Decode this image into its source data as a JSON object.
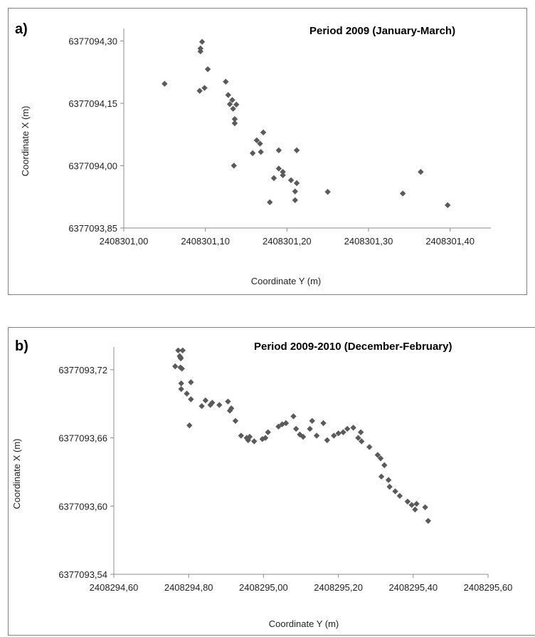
{
  "chart_data": [
    {
      "panel_label": "a)",
      "type": "scatter",
      "title": "Period  2009 (January-March)",
      "xlabel": "Coordinate Y (m)",
      "ylabel": "Coordinate X (m)",
      "xlim": [
        2408301.0,
        2408301.45
      ],
      "ylim": [
        6377093.85,
        6377094.33
      ],
      "x_ticks": [
        2408301.0,
        2408301.1,
        2408301.2,
        2408301.3,
        2408301.4
      ],
      "x_tick_labels": [
        "2408301,00",
        "2408301,10",
        "2408301,20",
        "2408301,30",
        "2408301,40"
      ],
      "y_ticks": [
        6377093.85,
        6377094.0,
        6377094.15,
        6377094.3
      ],
      "y_tick_labels": [
        "6377093,85",
        "6377094,00",
        "6377094,15",
        "6377094,30"
      ],
      "grid": false,
      "legend": "none",
      "marker": "diamond",
      "marker_color": "#5a5a5a",
      "points": [
        {
          "x": 2408301.05,
          "y": 6377094.197
        },
        {
          "x": 2408301.096,
          "y": 6377094.298
        },
        {
          "x": 2408301.094,
          "y": 6377094.282
        },
        {
          "x": 2408301.094,
          "y": 6377094.275
        },
        {
          "x": 2408301.103,
          "y": 6377094.232
        },
        {
          "x": 2408301.093,
          "y": 6377094.18
        },
        {
          "x": 2408301.099,
          "y": 6377094.187
        },
        {
          "x": 2408301.125,
          "y": 6377094.202
        },
        {
          "x": 2408301.128,
          "y": 6377094.17
        },
        {
          "x": 2408301.13,
          "y": 6377094.148
        },
        {
          "x": 2408301.133,
          "y": 6377094.158
        },
        {
          "x": 2408301.134,
          "y": 6377094.137
        },
        {
          "x": 2408301.138,
          "y": 6377094.147
        },
        {
          "x": 2408301.136,
          "y": 6377094.112
        },
        {
          "x": 2408301.136,
          "y": 6377094.102
        },
        {
          "x": 2408301.171,
          "y": 6377094.08
        },
        {
          "x": 2408301.163,
          "y": 6377094.061
        },
        {
          "x": 2408301.167,
          "y": 6377094.053
        },
        {
          "x": 2408301.168,
          "y": 6377094.033
        },
        {
          "x": 2408301.158,
          "y": 6377094.03
        },
        {
          "x": 2408301.135,
          "y": 6377094.0
        },
        {
          "x": 2408301.19,
          "y": 6377094.037
        },
        {
          "x": 2408301.212,
          "y": 6377094.037
        },
        {
          "x": 2408301.19,
          "y": 6377093.993
        },
        {
          "x": 2408301.195,
          "y": 6377093.985
        },
        {
          "x": 2408301.195,
          "y": 6377093.977
        },
        {
          "x": 2408301.184,
          "y": 6377093.97
        },
        {
          "x": 2408301.205,
          "y": 6377093.965
        },
        {
          "x": 2408301.212,
          "y": 6377093.958
        },
        {
          "x": 2408301.21,
          "y": 6377093.938
        },
        {
          "x": 2408301.179,
          "y": 6377093.912
        },
        {
          "x": 2408301.21,
          "y": 6377093.917
        },
        {
          "x": 2408301.25,
          "y": 6377093.937
        },
        {
          "x": 2408301.342,
          "y": 6377093.933
        },
        {
          "x": 2408301.364,
          "y": 6377093.985
        },
        {
          "x": 2408301.397,
          "y": 6377093.905
        }
      ]
    },
    {
      "panel_label": "b)",
      "type": "scatter",
      "title": "Period 2009-2010 (December-February)",
      "xlabel": "Coordinate Y (m)",
      "ylabel": "Coordinate  X (m)",
      "xlim": [
        2408294.6,
        2408295.6
      ],
      "ylim": [
        6377093.54,
        6377093.74
      ],
      "x_ticks": [
        2408294.6,
        2408294.8,
        2408295.0,
        2408295.2,
        2408295.4,
        2408295.6
      ],
      "x_tick_labels": [
        "2408294,60",
        "2408294,80",
        "2408295,00",
        "2408295,20",
        "2408295,40",
        "2408295,60"
      ],
      "y_ticks": [
        6377093.54,
        6377093.6,
        6377093.66,
        6377093.72
      ],
      "y_tick_labels": [
        "6377093,54",
        "6377093,60",
        "6377093,66",
        "6377093,72"
      ],
      "grid": false,
      "legend": "none",
      "marker": "diamond",
      "marker_color": "#5a5a5a",
      "points": [
        {
          "x": 2408294.772,
          "y": 6377093.737
        },
        {
          "x": 2408294.784,
          "y": 6377093.737
        },
        {
          "x": 2408294.776,
          "y": 6377093.732
        },
        {
          "x": 2408294.778,
          "y": 6377093.731
        },
        {
          "x": 2408294.779,
          "y": 6377093.73
        },
        {
          "x": 2408294.764,
          "y": 6377093.723
        },
        {
          "x": 2408294.778,
          "y": 6377093.722
        },
        {
          "x": 2408294.782,
          "y": 6377093.721
        },
        {
          "x": 2408294.78,
          "y": 6377093.708
        },
        {
          "x": 2408294.806,
          "y": 6377093.709
        },
        {
          "x": 2408294.78,
          "y": 6377093.703
        },
        {
          "x": 2408294.795,
          "y": 6377093.699
        },
        {
          "x": 2408294.806,
          "y": 6377093.694
        },
        {
          "x": 2408294.835,
          "y": 6377093.688
        },
        {
          "x": 2408294.845,
          "y": 6377093.693
        },
        {
          "x": 2408294.858,
          "y": 6377093.689
        },
        {
          "x": 2408294.863,
          "y": 6377093.691
        },
        {
          "x": 2408294.882,
          "y": 6377093.689
        },
        {
          "x": 2408294.905,
          "y": 6377093.692
        },
        {
          "x": 2408294.91,
          "y": 6377093.684
        },
        {
          "x": 2408294.914,
          "y": 6377093.686
        },
        {
          "x": 2408294.802,
          "y": 6377093.671
        },
        {
          "x": 2408294.925,
          "y": 6377093.675
        },
        {
          "x": 2408294.94,
          "y": 6377093.662
        },
        {
          "x": 2408294.955,
          "y": 6377093.66
        },
        {
          "x": 2408294.963,
          "y": 6377093.661
        },
        {
          "x": 2408294.959,
          "y": 6377093.658
        },
        {
          "x": 2408294.975,
          "y": 6377093.657
        },
        {
          "x": 2408294.997,
          "y": 6377093.659
        },
        {
          "x": 2408295.005,
          "y": 6377093.66
        },
        {
          "x": 2408295.012,
          "y": 6377093.665
        },
        {
          "x": 2408295.04,
          "y": 6377093.67
        },
        {
          "x": 2408295.05,
          "y": 6377093.672
        },
        {
          "x": 2408295.06,
          "y": 6377093.673
        },
        {
          "x": 2408295.08,
          "y": 6377093.679
        },
        {
          "x": 2408295.087,
          "y": 6377093.668
        },
        {
          "x": 2408295.097,
          "y": 6377093.663
        },
        {
          "x": 2408295.106,
          "y": 6377093.661
        },
        {
          "x": 2408295.124,
          "y": 6377093.668
        },
        {
          "x": 2408295.13,
          "y": 6377093.675
        },
        {
          "x": 2408295.142,
          "y": 6377093.662
        },
        {
          "x": 2408295.16,
          "y": 6377093.673
        },
        {
          "x": 2408295.17,
          "y": 6377093.658
        },
        {
          "x": 2408295.188,
          "y": 6377093.662
        },
        {
          "x": 2408295.2,
          "y": 6377093.664
        },
        {
          "x": 2408295.213,
          "y": 6377093.665
        },
        {
          "x": 2408295.224,
          "y": 6377093.668
        },
        {
          "x": 2408295.24,
          "y": 6377093.669
        },
        {
          "x": 2408295.253,
          "y": 6377093.66
        },
        {
          "x": 2408295.26,
          "y": 6377093.665
        },
        {
          "x": 2408295.262,
          "y": 6377093.657
        },
        {
          "x": 2408295.283,
          "y": 6377093.652
        },
        {
          "x": 2408295.305,
          "y": 6377093.645
        },
        {
          "x": 2408295.313,
          "y": 6377093.642
        },
        {
          "x": 2408295.323,
          "y": 6377093.636
        },
        {
          "x": 2408295.315,
          "y": 6377093.626
        },
        {
          "x": 2408295.334,
          "y": 6377093.623
        },
        {
          "x": 2408295.337,
          "y": 6377093.617
        },
        {
          "x": 2408295.352,
          "y": 6377093.613
        },
        {
          "x": 2408295.364,
          "y": 6377093.609
        },
        {
          "x": 2408295.385,
          "y": 6377093.604
        },
        {
          "x": 2408295.396,
          "y": 6377093.601
        },
        {
          "x": 2408295.409,
          "y": 6377093.602
        },
        {
          "x": 2408295.405,
          "y": 6377093.597
        },
        {
          "x": 2408295.432,
          "y": 6377093.599
        },
        {
          "x": 2408295.44,
          "y": 6377093.587
        }
      ]
    }
  ]
}
